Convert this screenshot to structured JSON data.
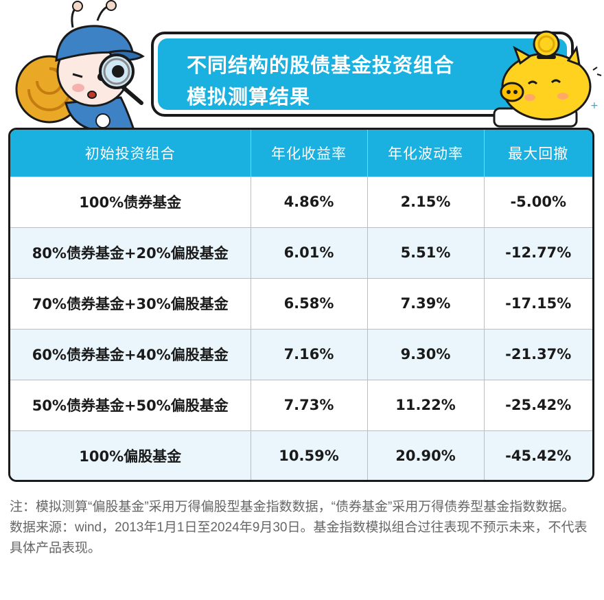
{
  "header": {
    "title_line1": "不同结构的股债基金投资组合",
    "title_line2": "模拟测算结果"
  },
  "table": {
    "columns": [
      "初始投资组合",
      "年化收益率",
      "年化波动率",
      "最大回撤"
    ],
    "rows": [
      [
        "100%债券基金",
        "4.86%",
        "2.15%",
        "-5.00%"
      ],
      [
        "80%债券基金+20%偏股基金",
        "6.01%",
        "5.51%",
        "-12.77%"
      ],
      [
        "70%债券基金+30%偏股基金",
        "6.58%",
        "7.39%",
        "-17.15%"
      ],
      [
        "60%债券基金+40%偏股基金",
        "7.16%",
        "9.30%",
        "-21.37%"
      ],
      [
        "50%债券基金+50%偏股基金",
        "7.73%",
        "11.22%",
        "-25.42%"
      ],
      [
        "100%偏股基金",
        "10.59%",
        "20.90%",
        "-45.42%"
      ]
    ]
  },
  "notes": {
    "note1": "注：模拟测算“偏股基金”采用万得偏股型基金指数数据，“债券基金”采用万得债券型基金指数数据。",
    "note2": "数据来源：wind，2013年1月1日至2024年9月30日。基金指数模拟组合过往表现不预示未来，不代表具体产品表现。"
  },
  "colors": {
    "accent": "#1ab0df",
    "row_alt": "#eaf6fc",
    "border": "#1a1a1a"
  },
  "icons": [
    "snail-mascot-with-magnifier-icon",
    "piggy-bank-with-coin-icon"
  ]
}
